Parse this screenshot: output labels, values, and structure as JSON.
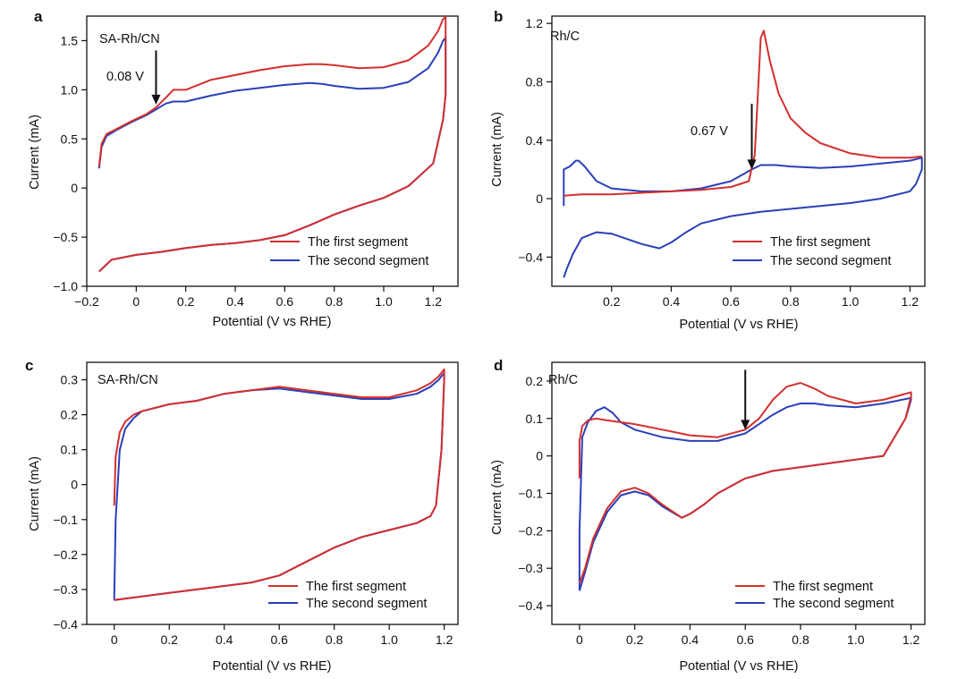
{
  "colors": {
    "first": "#d32f2f",
    "second": "#2a3fb8",
    "axis": "#111111",
    "arrow": "#111111"
  },
  "chart_data": [
    {
      "type": "line",
      "panel_label": "a",
      "title": "SA-Rh/CN",
      "xlabel": "Potential (V vs RHE)",
      "ylabel": "Current (mA)",
      "xlim": [
        -0.2,
        1.3
      ],
      "ylim": [
        -1.0,
        1.75
      ],
      "xticks": [
        -0.2,
        0,
        0.2,
        0.4,
        0.6,
        0.8,
        1.0,
        1.2
      ],
      "xtick_labels": [
        "−0.2",
        "0",
        "0.2",
        "0.4",
        "0.6",
        "0.8",
        "1.0",
        "1.2"
      ],
      "yticks": [
        -1.0,
        -0.5,
        0,
        0.5,
        1.0,
        1.5
      ],
      "ytick_labels": [
        "−1.0",
        "−0.5",
        "0",
        "0.5",
        "1.0",
        "1.5"
      ],
      "legend_position": "bottom-right",
      "annotation": {
        "text": "0.08 V",
        "x": 0.08,
        "y_tip": 0.85,
        "y_tail": 1.4
      },
      "series": [
        {
          "name": "The first segment",
          "color_key": "first",
          "x": [
            -0.15,
            -0.14,
            -0.12,
            -0.08,
            -0.02,
            0.04,
            0.08,
            0.12,
            0.15,
            0.2,
            0.3,
            0.4,
            0.5,
            0.6,
            0.7,
            0.75,
            0.8,
            0.9,
            1.0,
            1.1,
            1.18,
            1.22,
            1.24,
            1.25,
            1.25,
            1.24,
            1.2,
            1.1,
            1.0,
            0.9,
            0.8,
            0.7,
            0.6,
            0.5,
            0.4,
            0.3,
            0.2,
            0.1,
            0.0,
            -0.1,
            -0.15
          ],
          "y": [
            0.22,
            0.45,
            0.55,
            0.6,
            0.68,
            0.75,
            0.82,
            0.92,
            1.0,
            1.0,
            1.1,
            1.15,
            1.2,
            1.24,
            1.26,
            1.26,
            1.25,
            1.22,
            1.23,
            1.3,
            1.45,
            1.6,
            1.72,
            1.74,
            0.95,
            0.7,
            0.25,
            0.02,
            -0.1,
            -0.18,
            -0.27,
            -0.38,
            -0.48,
            -0.53,
            -0.56,
            -0.58,
            -0.61,
            -0.65,
            -0.68,
            -0.73,
            -0.85
          ]
        },
        {
          "name": "The second segment",
          "color_key": "second",
          "x": [
            -0.15,
            -0.14,
            -0.12,
            -0.08,
            -0.02,
            0.04,
            0.08,
            0.12,
            0.15,
            0.2,
            0.3,
            0.4,
            0.5,
            0.6,
            0.7,
            0.75,
            0.8,
            0.9,
            1.0,
            1.1,
            1.18,
            1.22,
            1.24,
            1.25,
            1.25,
            1.24,
            1.2,
            1.1,
            1.0,
            0.9,
            0.8,
            0.7,
            0.6,
            0.5,
            0.4,
            0.3,
            0.2,
            0.1,
            0.0,
            -0.1,
            -0.15
          ],
          "y": [
            0.2,
            0.42,
            0.53,
            0.59,
            0.67,
            0.74,
            0.8,
            0.86,
            0.88,
            0.88,
            0.94,
            0.99,
            1.02,
            1.05,
            1.07,
            1.06,
            1.04,
            1.01,
            1.02,
            1.08,
            1.22,
            1.38,
            1.5,
            1.53,
            0.95,
            0.7,
            0.25,
            0.02,
            -0.1,
            -0.18,
            -0.27,
            -0.38,
            -0.48,
            -0.53,
            -0.56,
            -0.58,
            -0.61,
            -0.65,
            -0.68,
            -0.73,
            -0.85
          ]
        }
      ]
    },
    {
      "type": "line",
      "panel_label": "b",
      "title": "Rh/C",
      "xlabel": "Potential (V vs RHE)",
      "ylabel": "Current (mA)",
      "xlim": [
        0,
        1.25
      ],
      "ylim": [
        -0.6,
        1.25
      ],
      "xticks": [
        0.2,
        0.4,
        0.6,
        0.8,
        1.0,
        1.2
      ],
      "xtick_labels": [
        "0.2",
        "0.4",
        "0.6",
        "0.8",
        "1.0",
        "1.2"
      ],
      "yticks": [
        -0.4,
        0,
        0.4,
        0.8,
        1.2
      ],
      "ytick_labels": [
        "−0.4",
        "0",
        "0.4",
        "0.8",
        "1.2"
      ],
      "legend_position": "bottom-right",
      "annotation": {
        "text": "0.67 V",
        "x": 0.67,
        "y_tip": 0.2,
        "y_tail": 0.65
      },
      "series": [
        {
          "name": "The first segment",
          "color_key": "first",
          "x": [
            0.04,
            0.1,
            0.2,
            0.3,
            0.4,
            0.5,
            0.6,
            0.66,
            0.68,
            0.69,
            0.7,
            0.71,
            0.73,
            0.76,
            0.8,
            0.85,
            0.9,
            1.0,
            1.1,
            1.2,
            1.24
          ],
          "y": [
            0.02,
            0.03,
            0.03,
            0.04,
            0.05,
            0.06,
            0.08,
            0.12,
            0.3,
            0.7,
            1.1,
            1.15,
            0.95,
            0.72,
            0.55,
            0.45,
            0.38,
            0.31,
            0.28,
            0.28,
            0.29
          ]
        },
        {
          "name": "The second segment",
          "color_key": "second",
          "x": [
            0.04,
            0.04,
            0.06,
            0.08,
            0.09,
            0.11,
            0.15,
            0.2,
            0.3,
            0.4,
            0.5,
            0.6,
            0.67,
            0.7,
            0.75,
            0.8,
            0.9,
            1.0,
            1.1,
            1.2,
            1.24,
            1.24,
            1.22,
            1.2,
            1.1,
            1.0,
            0.9,
            0.8,
            0.7,
            0.6,
            0.5,
            0.45,
            0.4,
            0.36,
            0.3,
            0.2,
            0.15,
            0.1,
            0.07,
            0.05,
            0.04
          ],
          "y": [
            -0.05,
            0.2,
            0.22,
            0.26,
            0.26,
            0.22,
            0.12,
            0.07,
            0.05,
            0.05,
            0.07,
            0.12,
            0.2,
            0.23,
            0.23,
            0.22,
            0.21,
            0.22,
            0.24,
            0.26,
            0.28,
            0.2,
            0.1,
            0.05,
            -0.0,
            -0.03,
            -0.05,
            -0.07,
            -0.09,
            -0.12,
            -0.17,
            -0.23,
            -0.3,
            -0.34,
            -0.31,
            -0.24,
            -0.23,
            -0.27,
            -0.38,
            -0.48,
            -0.54
          ]
        }
      ]
    },
    {
      "type": "line",
      "panel_label": "c",
      "title": "SA-Rh/CN",
      "xlabel": "Potential (V vs RHE)",
      "ylabel": "Current (mA)",
      "xlim": [
        -0.1,
        1.25
      ],
      "ylim": [
        -0.4,
        0.35
      ],
      "xticks": [
        0,
        0.2,
        0.4,
        0.6,
        0.8,
        1.0,
        1.2
      ],
      "xtick_labels": [
        "0",
        "0.2",
        "0.4",
        "0.6",
        "0.8",
        "1.0",
        "1.2"
      ],
      "yticks": [
        -0.4,
        -0.3,
        -0.2,
        -0.1,
        0,
        0.1,
        0.2,
        0.3
      ],
      "ytick_labels": [
        "−0.4",
        "−0.3",
        "−0.2",
        "−0.1",
        "0",
        "0.1",
        "0.2",
        "0.3"
      ],
      "legend_position": "bottom-right",
      "series": [
        {
          "name": "The first segment",
          "color_key": "first",
          "x": [
            0.0,
            0.005,
            0.02,
            0.04,
            0.07,
            0.1,
            0.15,
            0.2,
            0.3,
            0.4,
            0.5,
            0.6,
            0.7,
            0.8,
            0.9,
            1.0,
            1.1,
            1.15,
            1.18,
            1.2,
            1.2,
            1.19,
            1.17,
            1.15,
            1.1,
            1.0,
            0.9,
            0.8,
            0.7,
            0.6,
            0.5,
            0.4,
            0.3,
            0.2,
            0.1,
            0.0
          ],
          "y": [
            -0.06,
            0.08,
            0.15,
            0.18,
            0.2,
            0.21,
            0.22,
            0.23,
            0.24,
            0.26,
            0.27,
            0.28,
            0.27,
            0.26,
            0.25,
            0.25,
            0.27,
            0.29,
            0.31,
            0.33,
            0.3,
            0.1,
            -0.06,
            -0.09,
            -0.11,
            -0.13,
            -0.15,
            -0.18,
            -0.22,
            -0.26,
            -0.28,
            -0.29,
            -0.3,
            -0.31,
            -0.32,
            -0.33
          ]
        },
        {
          "name": "The second segment",
          "color_key": "second",
          "x": [
            0.0,
            0.005,
            0.02,
            0.04,
            0.07,
            0.1,
            0.15,
            0.2,
            0.3,
            0.4,
            0.5,
            0.6,
            0.7,
            0.8,
            0.9,
            1.0,
            1.1,
            1.15,
            1.18,
            1.2,
            1.2,
            1.19,
            1.17,
            1.15,
            1.1,
            1.0,
            0.9,
            0.8,
            0.7,
            0.6,
            0.5,
            0.4,
            0.3,
            0.2,
            0.1,
            0.0
          ],
          "y": [
            -0.33,
            -0.1,
            0.1,
            0.16,
            0.19,
            0.21,
            0.22,
            0.23,
            0.24,
            0.26,
            0.27,
            0.275,
            0.265,
            0.255,
            0.245,
            0.245,
            0.26,
            0.28,
            0.3,
            0.32,
            0.3,
            0.1,
            -0.06,
            -0.09,
            -0.11,
            -0.13,
            -0.15,
            -0.18,
            -0.22,
            -0.26,
            -0.28,
            -0.29,
            -0.3,
            -0.31,
            -0.32,
            -0.33
          ]
        }
      ]
    },
    {
      "type": "line",
      "panel_label": "d",
      "title": "Rh/C",
      "xlabel": "Potential (V vs RHE)",
      "ylabel": "Current (mA)",
      "xlim": [
        -0.1,
        1.25
      ],
      "ylim": [
        -0.45,
        0.25
      ],
      "xticks": [
        0,
        0.2,
        0.4,
        0.6,
        0.8,
        1.0,
        1.2
      ],
      "xtick_labels": [
        "0",
        "0.2",
        "0.4",
        "0.6",
        "0.8",
        "1.0",
        "1.2"
      ],
      "yticks": [
        -0.4,
        -0.3,
        -0.2,
        -0.1,
        0,
        0.1,
        0.2
      ],
      "ytick_labels": [
        "−0.4",
        "−0.3",
        "−0.2",
        "−0.1",
        "0",
        "0.1",
        "0.2"
      ],
      "legend_position": "bottom-right",
      "annotation": {
        "text": "",
        "x": 0.6,
        "y_tip": 0.07,
        "y_tail": 0.23
      },
      "series": [
        {
          "name": "The first segment",
          "color_key": "first",
          "x": [
            0.0,
            0.0,
            0.01,
            0.03,
            0.06,
            0.1,
            0.2,
            0.3,
            0.4,
            0.5,
            0.6,
            0.65,
            0.7,
            0.75,
            0.8,
            0.85,
            0.9,
            1.0,
            1.1,
            1.2,
            1.2,
            1.18,
            1.1,
            1.0,
            0.9,
            0.8,
            0.7,
            0.6,
            0.5,
            0.45,
            0.4,
            0.37,
            0.3,
            0.25,
            0.2,
            0.15,
            0.1,
            0.05,
            0.02,
            0.0
          ],
          "y": [
            -0.06,
            0.04,
            0.08,
            0.095,
            0.1,
            0.095,
            0.085,
            0.07,
            0.055,
            0.05,
            0.07,
            0.1,
            0.15,
            0.185,
            0.195,
            0.18,
            0.16,
            0.14,
            0.15,
            0.17,
            0.16,
            0.1,
            0.0,
            -0.01,
            -0.02,
            -0.03,
            -0.04,
            -0.06,
            -0.1,
            -0.13,
            -0.155,
            -0.165,
            -0.13,
            -0.1,
            -0.085,
            -0.095,
            -0.14,
            -0.22,
            -0.3,
            -0.34
          ]
        },
        {
          "name": "The second segment",
          "color_key": "second",
          "x": [
            0.0,
            0.0,
            0.01,
            0.03,
            0.06,
            0.09,
            0.12,
            0.15,
            0.2,
            0.3,
            0.4,
            0.5,
            0.6,
            0.65,
            0.7,
            0.75,
            0.8,
            0.85,
            0.9,
            1.0,
            1.1,
            1.2,
            1.2,
            1.18,
            1.1,
            1.0,
            0.9,
            0.8,
            0.7,
            0.6,
            0.5,
            0.45,
            0.4,
            0.37,
            0.3,
            0.25,
            0.2,
            0.15,
            0.1,
            0.05,
            0.02,
            0.0
          ],
          "y": [
            -0.36,
            -0.2,
            0.05,
            0.09,
            0.12,
            0.13,
            0.115,
            0.09,
            0.07,
            0.05,
            0.04,
            0.04,
            0.06,
            0.085,
            0.11,
            0.13,
            0.14,
            0.14,
            0.135,
            0.13,
            0.14,
            0.155,
            0.15,
            0.1,
            0.0,
            -0.01,
            -0.02,
            -0.03,
            -0.04,
            -0.06,
            -0.1,
            -0.13,
            -0.155,
            -0.165,
            -0.135,
            -0.105,
            -0.095,
            -0.105,
            -0.15,
            -0.23,
            -0.31,
            -0.36
          ]
        }
      ]
    }
  ]
}
